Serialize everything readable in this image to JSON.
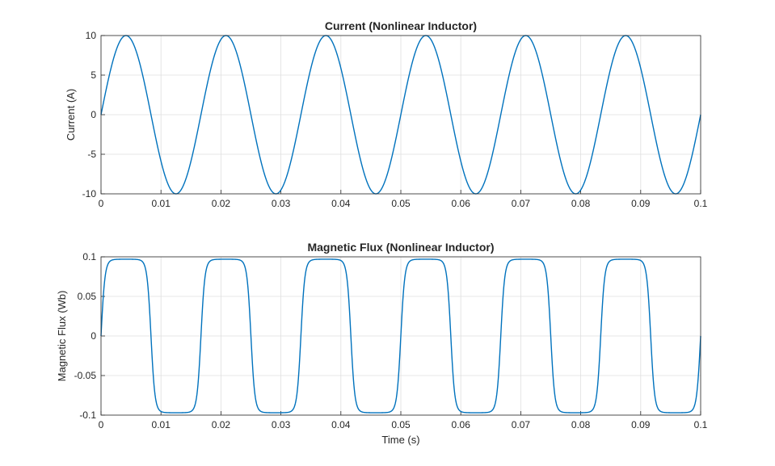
{
  "chart_data": [
    {
      "type": "line",
      "title": "Current (Nonlinear Inductor)",
      "xlabel": "",
      "ylabel": "Current (A)",
      "xlim": [
        0,
        0.1
      ],
      "ylim": [
        -10,
        10
      ],
      "xticks": [
        "0",
        "0.01",
        "0.02",
        "0.03",
        "0.04",
        "0.05",
        "0.06",
        "0.07",
        "0.08",
        "0.09",
        "0.1"
      ],
      "yticks": [
        "10",
        "5",
        "0",
        "-5",
        "-10"
      ],
      "grid": true,
      "series": [
        {
          "color": "#0072BD",
          "amplitude": 10,
          "frequency_hz": 60,
          "x": [
            0,
            0.0042,
            0.0083,
            0.0125,
            0.0167,
            0.0208,
            0.025,
            0.0292,
            0.0333,
            0.0375,
            0.0417,
            0.0458,
            0.05,
            0.0542,
            0.0583,
            0.0625,
            0.0667,
            0.0708,
            0.075,
            0.0792,
            0.0833,
            0.0875,
            0.0917,
            0.0958,
            0.1
          ],
          "y": [
            0,
            10,
            0,
            -10,
            0,
            10,
            0,
            -10,
            0,
            10,
            0,
            -10,
            0,
            10,
            0,
            -10,
            0,
            10,
            0,
            -10,
            0,
            10,
            0,
            -10,
            0
          ]
        }
      ]
    },
    {
      "type": "line",
      "title": "Magnetic Flux (Nonlinear Inductor)",
      "xlabel": "Time (s)",
      "ylabel": "Magnetic Flux (Wb)",
      "xlim": [
        0,
        0.1
      ],
      "ylim": [
        -0.1,
        0.1
      ],
      "xticks": [
        "0",
        "0.01",
        "0.02",
        "0.03",
        "0.04",
        "0.05",
        "0.06",
        "0.07",
        "0.08",
        "0.09",
        "0.1"
      ],
      "yticks": [
        "0.1",
        "0.05",
        "0",
        "-0.05",
        "-0.1"
      ],
      "grid": true,
      "series": [
        {
          "color": "#0072BD",
          "saturation_flux": 0.097,
          "frequency_hz": 60,
          "x": [
            0,
            0.0042,
            0.0083,
            0.0125,
            0.0167,
            0.0208,
            0.025,
            0.0292,
            0.0333,
            0.0375,
            0.0417,
            0.0458,
            0.05,
            0.0542,
            0.0583,
            0.0625,
            0.0667,
            0.0708,
            0.075,
            0.0792,
            0.0833,
            0.0875,
            0.0917,
            0.0958,
            0.1
          ],
          "y": [
            0,
            0.097,
            0,
            -0.097,
            0,
            0.097,
            0,
            -0.097,
            0,
            0.097,
            0,
            -0.097,
            0,
            0.097,
            0,
            -0.097,
            0,
            0.097,
            0,
            -0.097,
            0,
            0.097,
            0,
            -0.097,
            0
          ]
        }
      ]
    }
  ]
}
